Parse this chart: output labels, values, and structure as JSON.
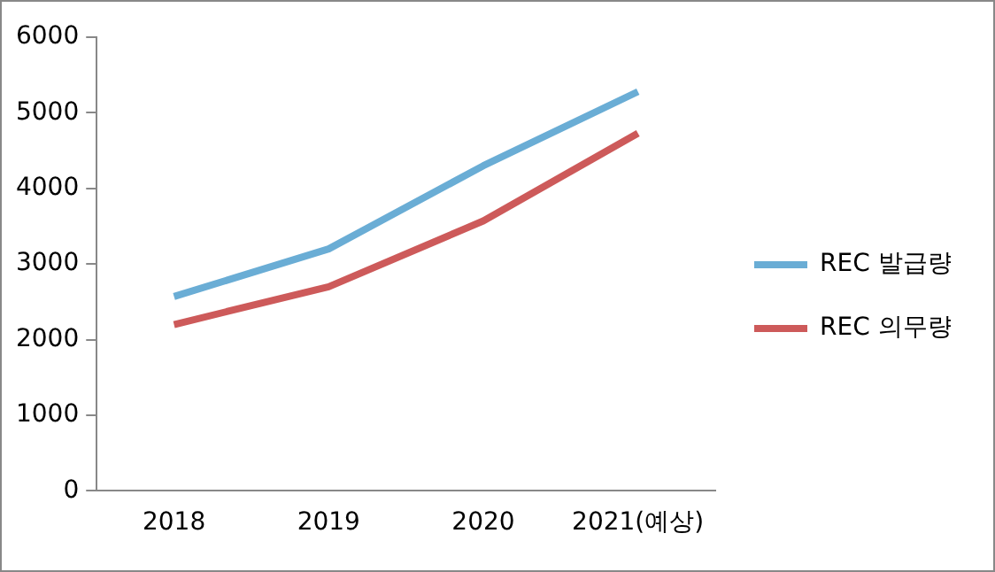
{
  "chart_data": {
    "type": "line",
    "categories": [
      "2018",
      "2019",
      "2020",
      "2021(예상)"
    ],
    "series": [
      {
        "name": "REC 발급량",
        "color": "#6aadd5",
        "values": [
          2570,
          3200,
          4300,
          5280
        ]
      },
      {
        "name": "REC 의무량",
        "color": "#cd5a5a",
        "values": [
          2200,
          2700,
          3570,
          4730
        ]
      }
    ],
    "ylim": [
      0,
      6000
    ],
    "yticks": [
      0,
      1000,
      2000,
      3000,
      4000,
      5000,
      6000
    ],
    "grid": false,
    "legend": "right",
    "marker": "none",
    "line_style": "solid"
  }
}
